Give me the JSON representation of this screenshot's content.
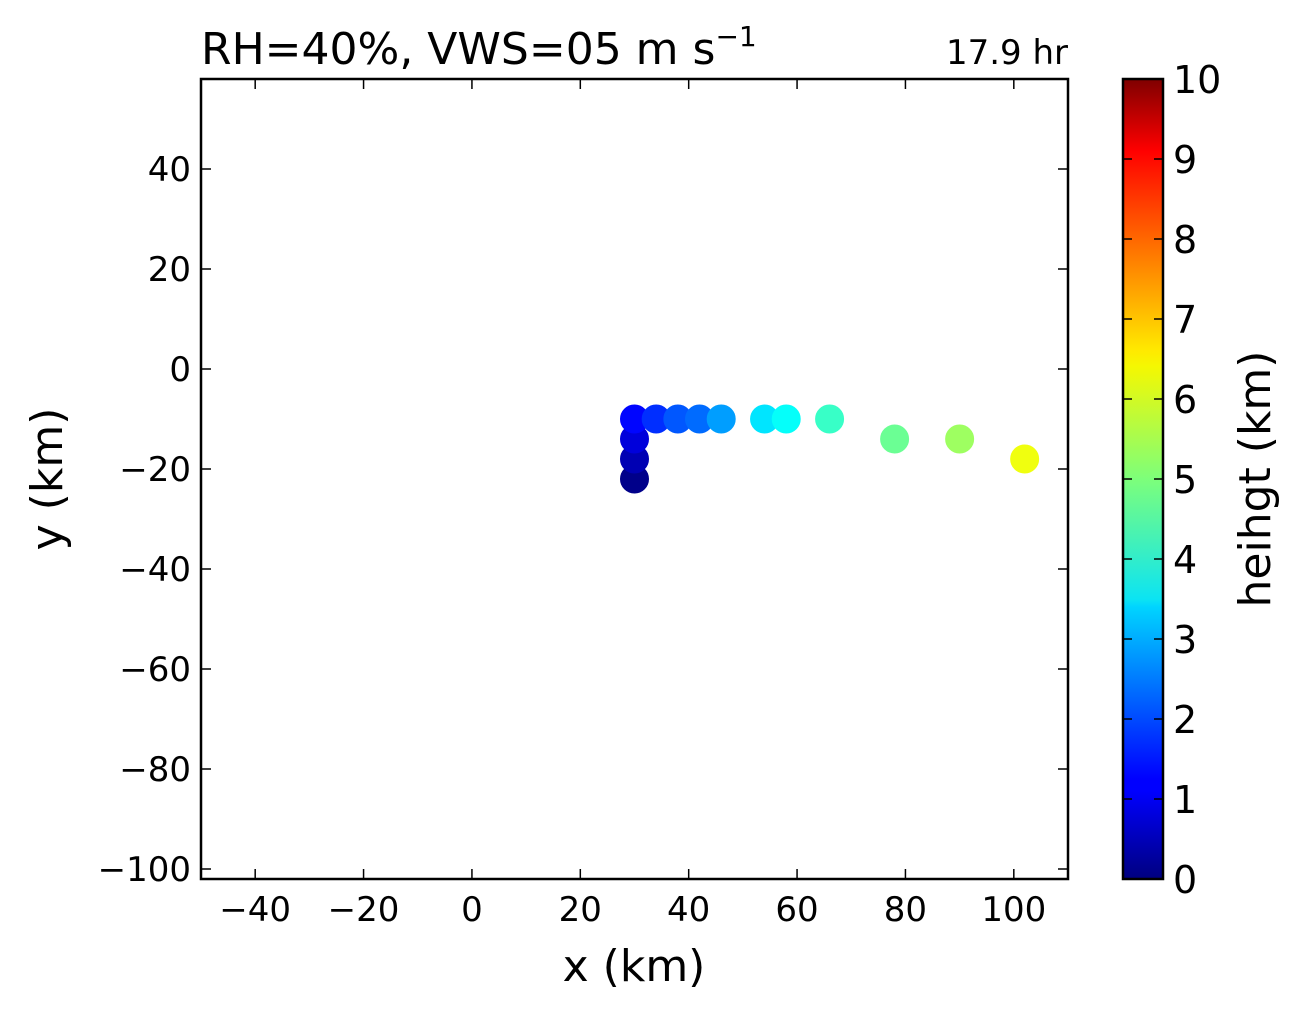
{
  "chart_data": {
    "type": "scatter",
    "title": "RH=40%, VWS=05 m s",
    "title_superscript": "−1",
    "annotation": {
      "text": "17.9 hr",
      "color": "#0000ff"
    },
    "xlabel": "x (km)",
    "ylabel": "y (km)",
    "xlim": [
      -50,
      110
    ],
    "ylim": [
      -102,
      58
    ],
    "xticks": [
      -40,
      -20,
      0,
      20,
      40,
      60,
      80,
      100
    ],
    "yticks": [
      -100,
      -80,
      -60,
      -40,
      -20,
      0,
      20,
      40
    ],
    "xtick_labels": [
      "−40",
      "−20",
      "0",
      "20",
      "40",
      "60",
      "80",
      "100"
    ],
    "ytick_labels": [
      "−100",
      "−80",
      "−60",
      "−40",
      "−20",
      "0",
      "20",
      "40"
    ],
    "grid": false,
    "colorbar": {
      "label": "heihgt (km)",
      "range": [
        0,
        10
      ],
      "ticks": [
        0,
        1,
        2,
        3,
        4,
        5,
        6,
        7,
        8,
        9,
        10
      ],
      "tick_labels": [
        "0",
        "1",
        "2",
        "3",
        "4",
        "5",
        "6",
        "7",
        "8",
        "9",
        "10"
      ],
      "colormap": "jet"
    },
    "points": [
      {
        "x": 30,
        "y": -22,
        "height": 0.1
      },
      {
        "x": 30,
        "y": -18,
        "height": 0.5
      },
      {
        "x": 30,
        "y": -14,
        "height": 0.9
      },
      {
        "x": 30,
        "y": -10,
        "height": 1.3
      },
      {
        "x": 34,
        "y": -10,
        "height": 1.7
      },
      {
        "x": 38,
        "y": -10,
        "height": 2.1
      },
      {
        "x": 42,
        "y": -10,
        "height": 2.3
      },
      {
        "x": 46,
        "y": -10,
        "height": 2.8
      },
      {
        "x": 54,
        "y": -10,
        "height": 3.5
      },
      {
        "x": 58,
        "y": -10,
        "height": 3.8
      },
      {
        "x": 66,
        "y": -10,
        "height": 4.3
      },
      {
        "x": 78,
        "y": -14,
        "height": 4.8
      },
      {
        "x": 90,
        "y": -14,
        "height": 5.3
      },
      {
        "x": 102,
        "y": -18,
        "height": 6.1
      }
    ]
  }
}
